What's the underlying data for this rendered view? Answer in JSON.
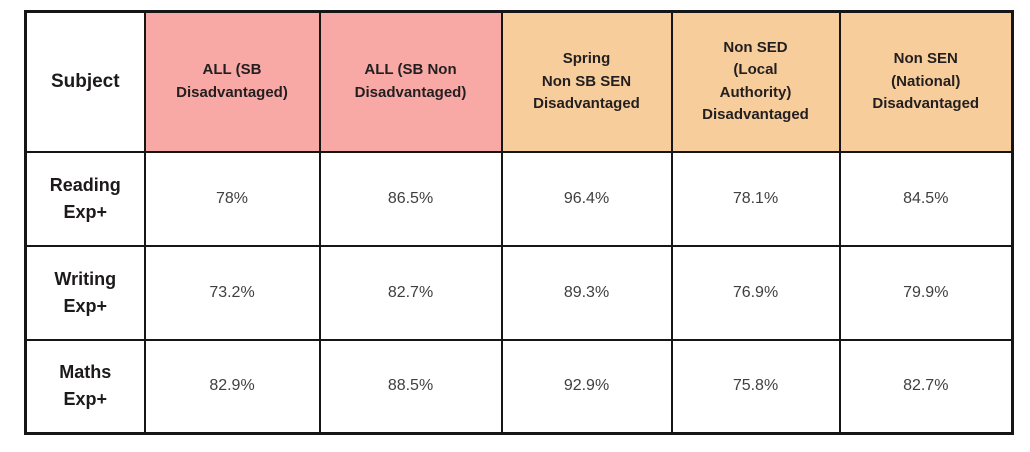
{
  "colors": {
    "pink": "#f8a9a5",
    "peach": "#f8cd9c",
    "border": "#161616"
  },
  "table": {
    "columns": [
      {
        "label": "Subject",
        "bg": "white"
      },
      {
        "label": "ALL (SB\nDisadvantaged)",
        "bg": "pink"
      },
      {
        "label": "ALL (SB Non\nDisadvantaged)",
        "bg": "pink"
      },
      {
        "label": "Spring\nNon SB SEN\nDisadvantaged",
        "bg": "peach"
      },
      {
        "label": "Non SED\n(Local\nAuthority)\nDisadvantaged",
        "bg": "peach"
      },
      {
        "label": "Non SEN\n(National)\nDisadvantaged",
        "bg": "peach"
      }
    ],
    "rows": [
      {
        "label": "Reading\nExp+",
        "values": [
          "78%",
          "86.5%",
          "96.4%",
          "78.1%",
          "84.5%"
        ]
      },
      {
        "label": "Writing\nExp+",
        "values": [
          "73.2%",
          "82.7%",
          "89.3%",
          "76.9%",
          "79.9%"
        ]
      },
      {
        "label": "Maths\nExp+",
        "values": [
          "82.9%",
          "88.5%",
          "92.9%",
          "75.8%",
          "82.7%"
        ]
      }
    ]
  }
}
